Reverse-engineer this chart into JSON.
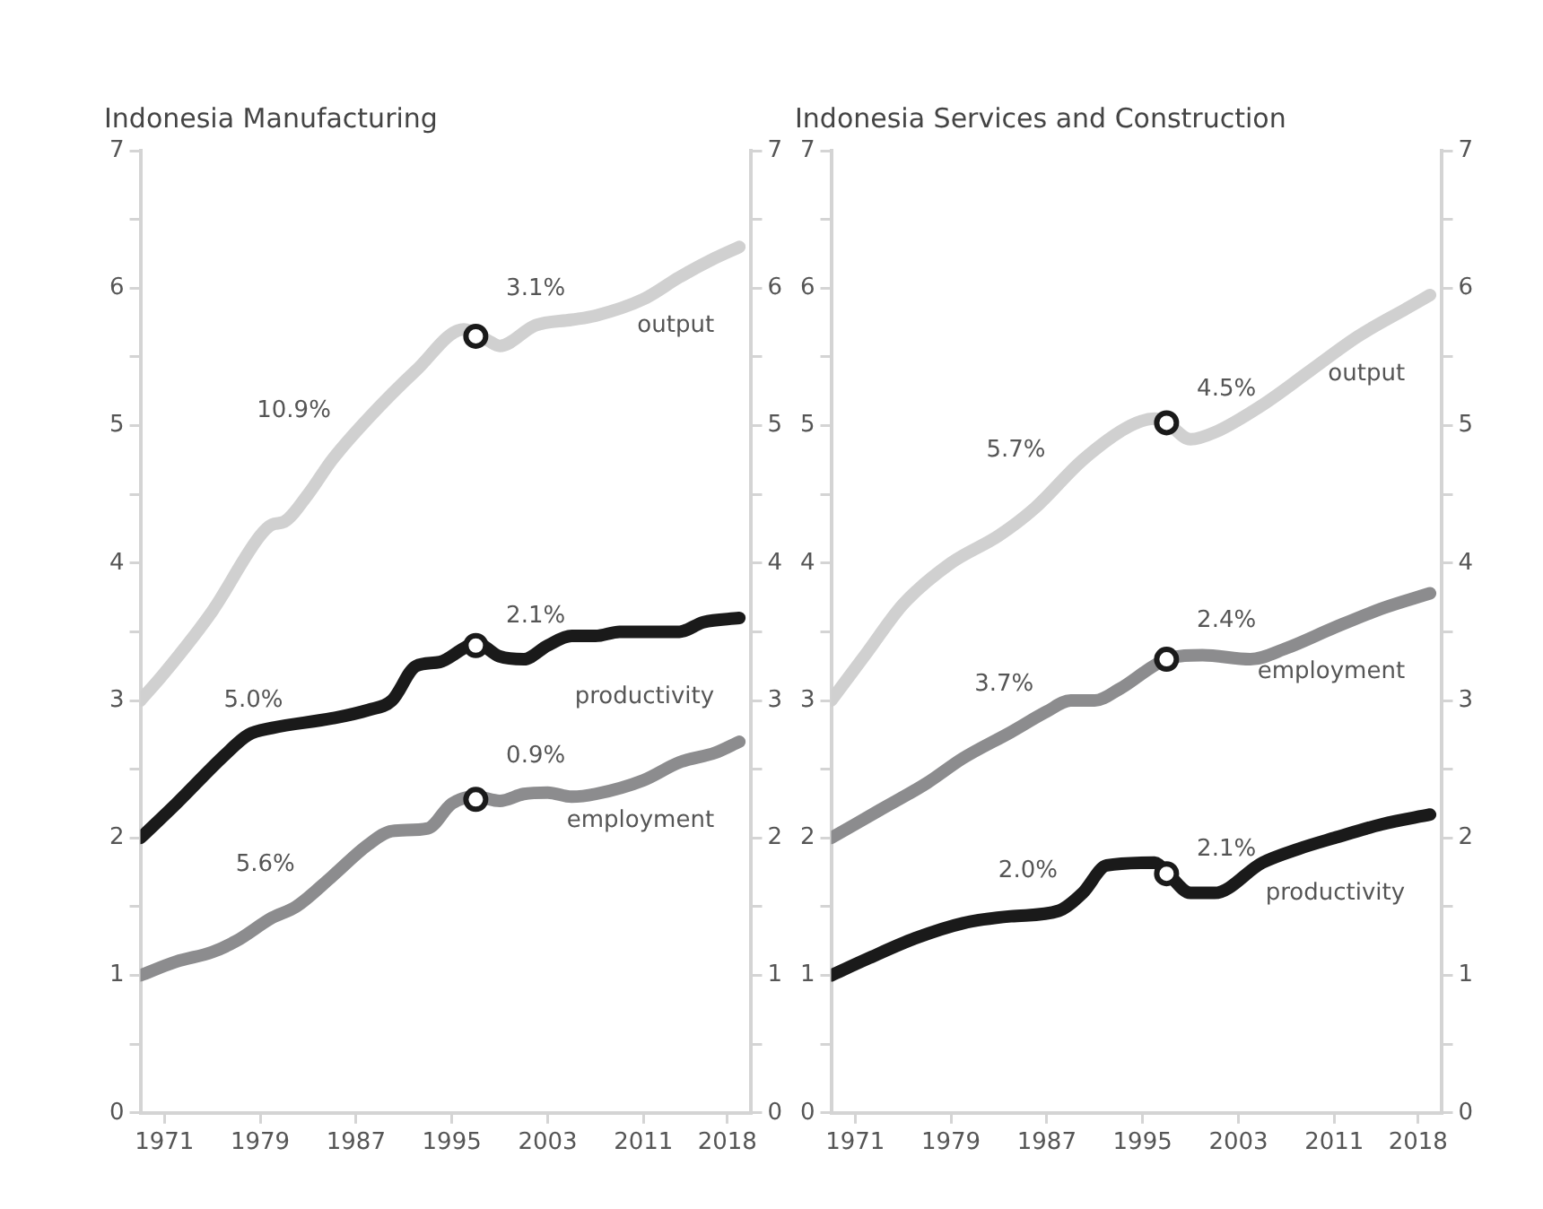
{
  "chart_data": [
    {
      "type": "line",
      "title": "Indonesia Manufacturing",
      "xlim": [
        1969,
        2020
      ],
      "xticks": [
        1971,
        1979,
        1987,
        1995,
        2003,
        2011,
        2018
      ],
      "ylim": [
        0,
        7
      ],
      "yticks": [
        0,
        {
          "value": 0.5,
          "label": null
        },
        1,
        {
          "value": 1.5,
          "label": null
        },
        2,
        {
          "value": 2.5,
          "label": null
        },
        3,
        {
          "value": 3.5,
          "label": null
        },
        4,
        {
          "value": 4.5,
          "label": null
        },
        5,
        {
          "value": 5.5,
          "label": null
        },
        6,
        {
          "value": 6.5,
          "label": null
        },
        7
      ],
      "y2lim": [
        0,
        7
      ],
      "y2ticks": [
        0,
        {
          "value": 0.5,
          "label": null
        },
        1,
        {
          "value": 1.5,
          "label": null
        },
        2,
        {
          "value": 2.5,
          "label": null
        },
        3,
        {
          "value": 3.5,
          "label": null
        },
        4,
        {
          "value": 4.5,
          "label": null
        },
        5,
        {
          "value": 5.5,
          "label": null
        },
        6,
        {
          "value": 6.5,
          "label": null
        },
        7
      ],
      "grid": false,
      "legend": false,
      "marker": "none",
      "line_style": "solid",
      "series": [
        {
          "name": "output",
          "color": "#d0d0d0",
          "x": [
            1969,
            1971,
            1975,
            1979,
            1980,
            1981,
            1983,
            1985,
            1988,
            1992,
            1996,
            1998,
            1999,
            2002,
            2005,
            2007,
            2011,
            2014,
            2017,
            2019
          ],
          "values": [
            3.0,
            3.2,
            3.65,
            4.2,
            4.28,
            4.3,
            4.5,
            4.75,
            5.05,
            5.4,
            5.7,
            5.62,
            5.58,
            5.73,
            5.77,
            5.8,
            5.92,
            6.08,
            6.22,
            6.3
          ]
        },
        {
          "name": "productivity",
          "color": "#1a1a1a",
          "x": [
            1969,
            1972,
            1976,
            1978,
            1980,
            1985,
            1988,
            1990,
            1992,
            1994,
            1996,
            1997,
            1999,
            2001,
            2003,
            2005,
            2007,
            2009,
            2014,
            2016,
            2019
          ],
          "values": [
            2.0,
            2.25,
            2.6,
            2.75,
            2.8,
            2.87,
            2.93,
            3.0,
            3.25,
            3.28,
            3.38,
            3.42,
            3.32,
            3.3,
            3.4,
            3.47,
            3.47,
            3.5,
            3.5,
            3.57,
            3.6
          ]
        },
        {
          "name": "employment",
          "color": "#8c8c8e",
          "x": [
            1969,
            1972,
            1975,
            1977,
            1980,
            1982,
            1985,
            1988,
            1990,
            1993,
            1995,
            1997,
            1999,
            2001,
            2003,
            2005,
            2007,
            2011,
            2014,
            2017,
            2019
          ],
          "values": [
            1.0,
            1.1,
            1.17,
            1.25,
            1.42,
            1.5,
            1.72,
            1.95,
            2.05,
            2.07,
            2.25,
            2.3,
            2.27,
            2.32,
            2.33,
            2.3,
            2.32,
            2.42,
            2.55,
            2.62,
            2.7
          ]
        },
        {
          "type": "scatter",
          "marker": "circle",
          "color": "#1a1a1a",
          "x": [
            1997,
            1997,
            1997
          ],
          "values": [
            5.65,
            3.4,
            2.28
          ]
        }
      ],
      "annotations": [
        {
          "text": "10.9%",
          "x": 1987,
          "y": 4.95
        },
        {
          "text": "3.1%",
          "x": 2002,
          "y": 5.73
        },
        {
          "text": "5.0%",
          "x": 1983,
          "y": 2.84
        },
        {
          "text": "2.1%",
          "x": 2002,
          "y": 3.35
        },
        {
          "text": "5.6%",
          "x": 1984,
          "y": 1.65
        },
        {
          "text": "0.9%",
          "x": 2002,
          "y": 2.33
        }
      ]
    },
    {
      "type": "line",
      "title": "Indonesia Services and Construction",
      "xlim": [
        1969,
        2020
      ],
      "xticks": [
        1971,
        1979,
        1987,
        1995,
        2003,
        2011,
        2018
      ],
      "ylim": [
        0,
        7
      ],
      "yticks": [
        0,
        {
          "value": 0.5,
          "label": null
        },
        1,
        {
          "value": 1.5,
          "label": null
        },
        2,
        {
          "value": 2.5,
          "label": null
        },
        3,
        {
          "value": 3.5,
          "label": null
        },
        4,
        {
          "value": 4.5,
          "label": null
        },
        5,
        {
          "value": 5.5,
          "label": null
        },
        6,
        {
          "value": 6.5,
          "label": null
        },
        7
      ],
      "y2lim": [
        0,
        7
      ],
      "y2ticks": [
        0,
        {
          "value": 0.5,
          "label": null
        },
        1,
        {
          "value": 1.5,
          "label": null
        },
        2,
        {
          "value": 2.5,
          "label": null
        },
        3,
        {
          "value": 3.5,
          "label": null
        },
        4,
        {
          "value": 4.5,
          "label": null
        },
        5,
        {
          "value": 5.5,
          "label": null
        },
        6,
        {
          "value": 6.5,
          "label": null
        },
        7
      ],
      "grid": false,
      "legend": false,
      "marker": "none",
      "line_style": "solid",
      "series": [
        {
          "name": "output",
          "color": "#d0d0d0",
          "x": [
            1969,
            1972,
            1975,
            1979,
            1983,
            1986,
            1990,
            1994,
            1996,
            1997,
            1999,
            2001,
            2005,
            2009,
            2013,
            2017,
            2019
          ],
          "values": [
            3.0,
            3.35,
            3.7,
            4.0,
            4.2,
            4.4,
            4.75,
            5.0,
            5.05,
            5.02,
            4.9,
            4.95,
            5.15,
            5.4,
            5.65,
            5.85,
            5.95
          ]
        },
        {
          "name": "employment",
          "color": "#8c8c8e",
          "x": [
            1969,
            1973,
            1977,
            1980,
            1984,
            1987,
            1989,
            1991,
            1993,
            1997,
            2000,
            2004,
            2007,
            2011,
            2015,
            2019
          ],
          "values": [
            2.0,
            2.2,
            2.4,
            2.58,
            2.77,
            2.92,
            3.0,
            3.0,
            3.08,
            3.3,
            3.33,
            3.3,
            3.38,
            3.53,
            3.67,
            3.78
          ]
        },
        {
          "name": "productivity",
          "color": "#1a1a1a",
          "x": [
            1969,
            1972,
            1976,
            1980,
            1984,
            1988,
            1990,
            1992,
            1996,
            1997,
            1999,
            2001,
            2005,
            2008,
            2011,
            2015,
            2019
          ],
          "values": [
            1.0,
            1.12,
            1.27,
            1.38,
            1.43,
            1.47,
            1.6,
            1.8,
            1.82,
            1.75,
            1.6,
            1.6,
            1.82,
            1.92,
            2.0,
            2.1,
            2.17
          ]
        },
        {
          "type": "scatter",
          "marker": "circle",
          "color": "#1a1a1a",
          "x": [
            1997,
            1997,
            1997
          ],
          "values": [
            5.02,
            3.3,
            1.74
          ]
        }
      ],
      "annotations": [
        {
          "text": "5.7%",
          "x": 1989,
          "y": 4.66
        },
        {
          "text": "4.5%",
          "x": 2002,
          "y": 5.0
        },
        {
          "text": "3.7%",
          "x": 1988,
          "y": 2.96
        },
        {
          "text": "2.4%",
          "x": 2002,
          "y": 3.32
        },
        {
          "text": "2.0%",
          "x": 1990,
          "y": 1.6
        },
        {
          "text": "2.1%",
          "x": 2002,
          "y": 1.655
        }
      ]
    }
  ]
}
